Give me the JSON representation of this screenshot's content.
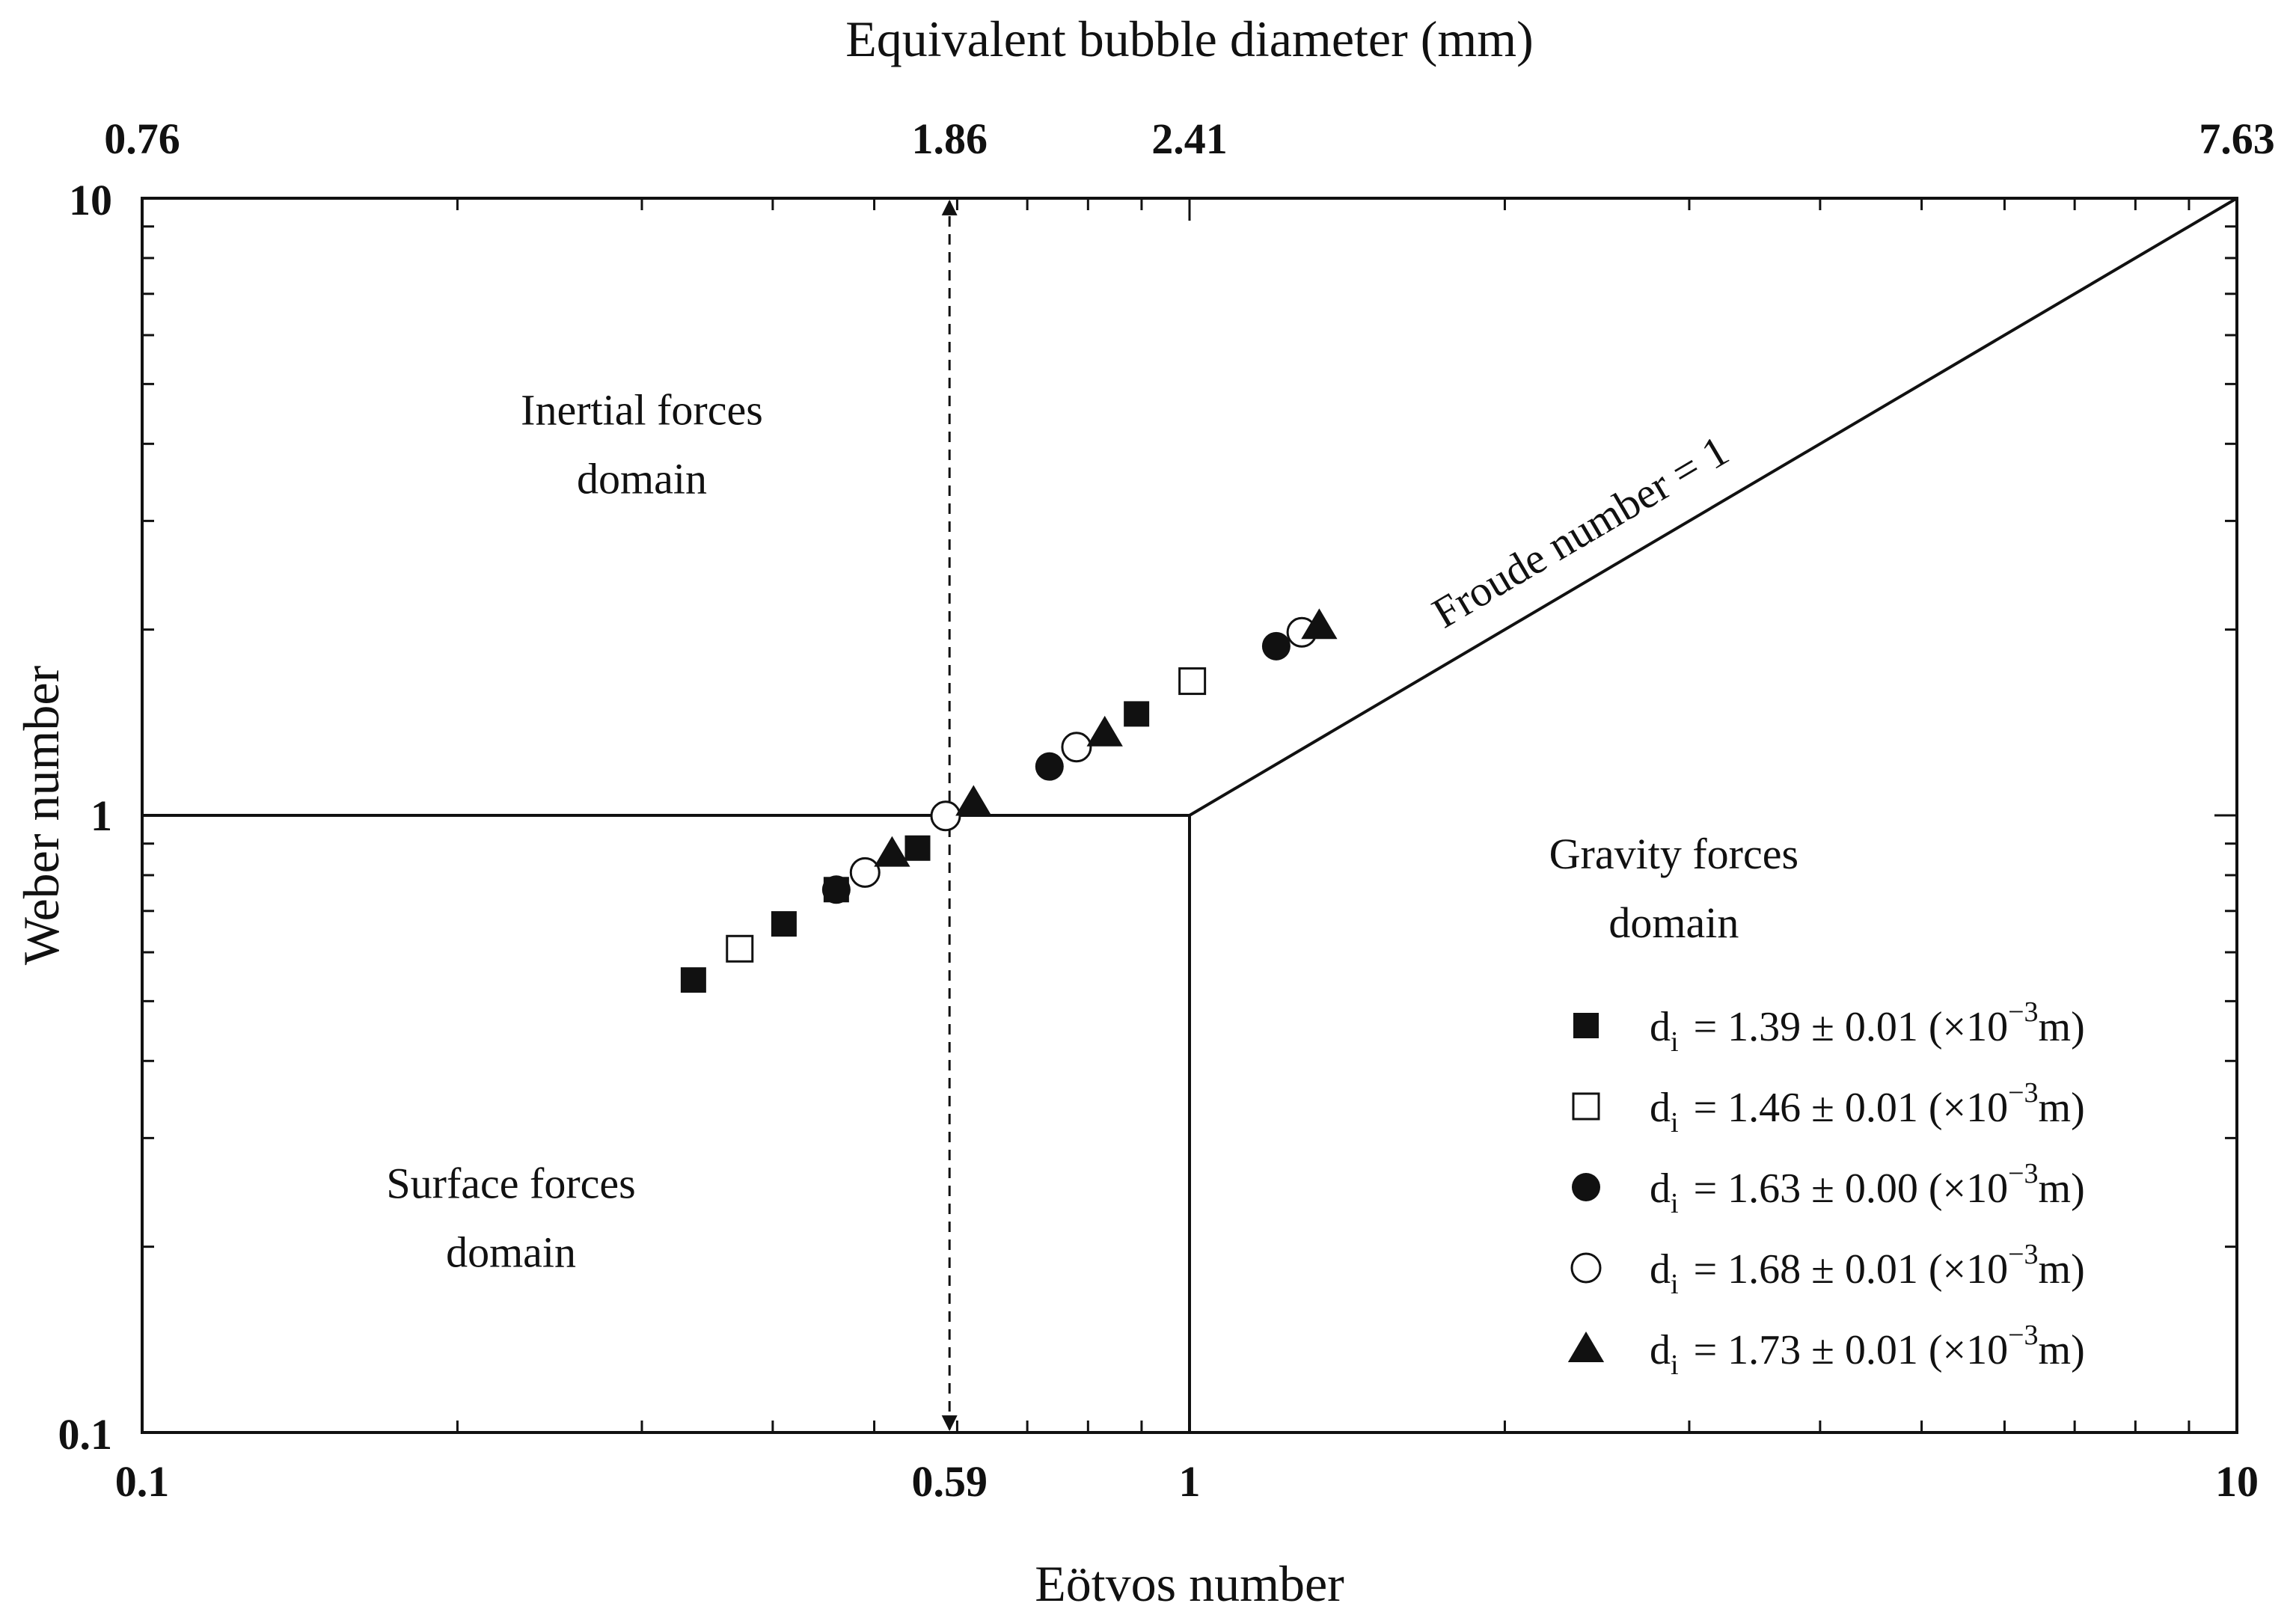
{
  "chart_data": {
    "type": "scatter",
    "xscale": "log",
    "yscale": "log",
    "xlim": [
      0.1,
      10
    ],
    "ylim": [
      0.1,
      10
    ],
    "xlabel": "Eötvos number",
    "ylabel": "Weber number",
    "top_axis_label": "Equivalent bubble diameter (mm)",
    "x_ticks": [
      {
        "value": 0.1,
        "label": "0.1"
      },
      {
        "value": 0.59,
        "label": "0.59"
      },
      {
        "value": 1,
        "label": "1"
      },
      {
        "value": 10,
        "label": "10"
      }
    ],
    "y_ticks": [
      {
        "value": 0.1,
        "label": "0.1"
      },
      {
        "value": 1,
        "label": "1"
      },
      {
        "value": 10,
        "label": "10"
      }
    ],
    "top_ticks": [
      {
        "eo": 0.1,
        "label": "0.76"
      },
      {
        "eo": 0.59,
        "label": "1.86"
      },
      {
        "eo": 1,
        "label": "2.41"
      },
      {
        "eo": 10,
        "label": "7.63"
      }
    ],
    "boundaries": [
      {
        "name": "inertial-surface-boundary",
        "points": [
          [
            0.1,
            1
          ],
          [
            1,
            1
          ]
        ],
        "style": "solid"
      },
      {
        "name": "surface-gravity-boundary",
        "points": [
          [
            1,
            0.1
          ],
          [
            1,
            1
          ]
        ],
        "style": "solid"
      },
      {
        "name": "froude-line",
        "points": [
          [
            1,
            1
          ],
          [
            10,
            10
          ]
        ],
        "style": "solid"
      },
      {
        "name": "critical-eotvos-arrow",
        "points": [
          [
            0.59,
            0.1
          ],
          [
            0.59,
            10
          ]
        ],
        "style": "dashed-double-arrow"
      }
    ],
    "annotations": [
      {
        "name": "inertial-domain-label",
        "lines": [
          "Inertial forces",
          "domain"
        ],
        "x": 0.3,
        "y": 4.3
      },
      {
        "name": "surface-domain-label",
        "lines": [
          "Surface forces",
          "domain"
        ],
        "x": 0.225,
        "y": 0.24
      },
      {
        "name": "gravity-domain-label",
        "lines": [
          "Gravity forces",
          "domain"
        ],
        "x": 2.9,
        "y": 0.82
      },
      {
        "name": "froude-label",
        "text": "Froude number = 1",
        "x": 2.4,
        "y": 2.75,
        "rotate_along": "froude-line"
      }
    ],
    "legend_position": "bottom-right",
    "series": [
      {
        "name": "d_i = 1.39 ± 0.01 (×10^-3 m)",
        "label_main": "= 1.39 ± 0.01 (×10",
        "marker": "square-filled",
        "points": [
          [
            0.336,
            0.541
          ],
          [
            0.41,
            0.667
          ],
          [
            0.46,
            0.758
          ],
          [
            0.55,
            0.885
          ],
          [
            0.89,
            1.46
          ]
        ]
      },
      {
        "name": "d_i = 1.46 ± 0.01 (×10^-3 m)",
        "label_main": "= 1.46 ± 0.01 (×10",
        "marker": "square-open",
        "points": [
          [
            0.372,
            0.608
          ],
          [
            1.006,
            1.65
          ]
        ]
      },
      {
        "name": "d_i = 1.63 ± 0.00 (×10^-3 m)",
        "label_main": "= 1.63 ± 0.00 (×10",
        "marker": "circle-filled",
        "points": [
          [
            0.46,
            0.758
          ],
          [
            0.735,
            1.2
          ],
          [
            1.21,
            1.88
          ]
        ]
      },
      {
        "name": "d_i = 1.68 ± 0.01 (×10^-3 m)",
        "label_main": "= 1.68 ± 0.01 (×10",
        "marker": "circle-open",
        "points": [
          [
            0.49,
            0.808
          ],
          [
            0.585,
            0.998
          ],
          [
            0.78,
            1.29
          ],
          [
            1.28,
            1.98
          ]
        ]
      },
      {
        "name": "d_i = 1.73 ± 0.01 (×10^-3 m)",
        "label_main": "= 1.73 ± 0.01 (×10",
        "marker": "triangle-filled",
        "points": [
          [
            0.52,
            0.868
          ],
          [
            0.622,
            1.05
          ],
          [
            0.83,
            1.36
          ],
          [
            1.33,
            2.03
          ]
        ]
      }
    ],
    "legend_label_prefix": "d",
    "legend_label_sub": "i",
    "legend_label_sup": "−3",
    "legend_label_end": "m)"
  }
}
